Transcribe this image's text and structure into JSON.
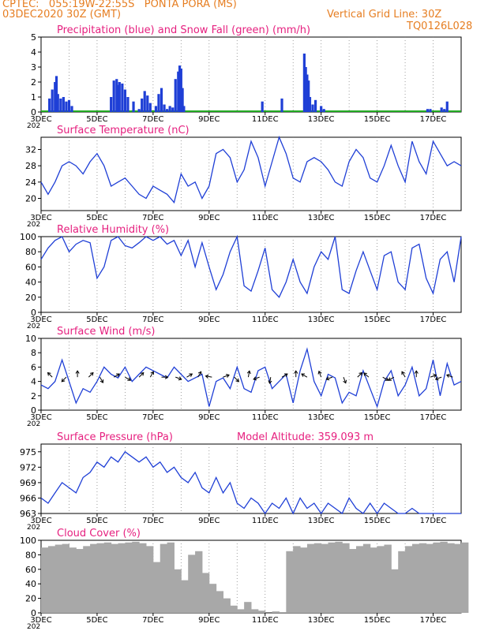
{
  "header": {
    "line1_left": "CPTEC:   055:19W-22:55S   PONTA PORA (MS)",
    "line2_left": "03DEC2020 30Z (GMT)",
    "line2_right": "Vertical Grid Line: 30Z",
    "line3_right": "TQ0126L028"
  },
  "x_axis": {
    "range_days": [
      3,
      18
    ],
    "tick_labels": [
      "3DEC",
      "5DEC",
      "7DEC",
      "9DEC",
      "11DEC",
      "13DEC",
      "15DEC",
      "17DEC"
    ],
    "tick_days": [
      3,
      5,
      7,
      9,
      11,
      13,
      15,
      17
    ],
    "stray_label": "202"
  },
  "colors": {
    "header": "#e67e22",
    "title": "#e6207f",
    "line": "#1f3fd6",
    "snow": "#22aa22",
    "cloud": "#a8a8a8",
    "grid": "#888888"
  },
  "chart_data": [
    {
      "type": "bar",
      "title": "Precipitation (blue) and Snow Fall (green) (mm/h)",
      "ylim": [
        0,
        5
      ],
      "yticks": [
        "0",
        "1",
        "2",
        "3",
        "4",
        "5"
      ],
      "series": [
        {
          "name": "Precipitation",
          "x_days": [
            3.3,
            3.4,
            3.5,
            3.55,
            3.6,
            3.7,
            3.8,
            3.9,
            4.0,
            4.1,
            5.5,
            5.6,
            5.7,
            5.75,
            5.8,
            5.9,
            6.0,
            6.1,
            6.3,
            6.5,
            6.6,
            6.7,
            6.8,
            6.9,
            7.1,
            7.2,
            7.3,
            7.4,
            7.5,
            7.6,
            7.7,
            7.8,
            7.9,
            7.95,
            8.0,
            8.05,
            8.1,
            10.9,
            11.6,
            12.4,
            12.45,
            12.5,
            12.55,
            12.6,
            12.7,
            12.8,
            13.0,
            13.1,
            16.8,
            16.9,
            17.3,
            17.4,
            17.5
          ],
          "values": [
            0.9,
            1.5,
            2.0,
            2.4,
            1.2,
            0.9,
            1.0,
            0.7,
            0.8,
            0.4,
            1.0,
            2.1,
            2.2,
            1.8,
            2.0,
            1.9,
            1.5,
            1.0,
            0.7,
            0.2,
            0.9,
            1.4,
            1.1,
            0.6,
            0.4,
            1.2,
            1.6,
            0.5,
            0.2,
            0.4,
            0.3,
            2.2,
            2.7,
            3.1,
            2.9,
            1.6,
            0.4,
            0.7,
            0.9,
            3.9,
            3.0,
            2.5,
            2.1,
            1.0,
            0.5,
            0.8,
            0.4,
            0.2,
            0.2,
            0.2,
            0.3,
            0.2,
            0.7
          ]
        },
        {
          "name": "Snow Fall",
          "x_days": [
            3,
            18
          ],
          "values": [
            0,
            0
          ]
        }
      ]
    },
    {
      "type": "line",
      "title": "Surface Temperature (nC)",
      "ylim": [
        17,
        35
      ],
      "yticks": [
        "20",
        "24",
        "28",
        "32"
      ],
      "ytick_values": [
        20,
        24,
        28,
        32
      ],
      "x": [
        3.0,
        3.25,
        3.5,
        3.75,
        4.0,
        4.25,
        4.5,
        4.75,
        5.0,
        5.25,
        5.5,
        5.75,
        6.0,
        6.25,
        6.5,
        6.75,
        7.0,
        7.25,
        7.5,
        7.75,
        8.0,
        8.25,
        8.5,
        8.75,
        9.0,
        9.25,
        9.5,
        9.75,
        10.0,
        10.25,
        10.5,
        10.75,
        11.0,
        11.25,
        11.5,
        11.75,
        12.0,
        12.25,
        12.5,
        12.75,
        13.0,
        13.25,
        13.5,
        13.75,
        14.0,
        14.25,
        14.5,
        14.75,
        15.0,
        15.25,
        15.5,
        15.75,
        16.0,
        16.25,
        16.5,
        16.75,
        17.0,
        17.25,
        17.5,
        17.75,
        18.0
      ],
      "values": [
        24,
        21,
        24,
        28,
        29,
        28,
        26,
        29,
        31,
        28,
        23,
        24,
        25,
        23,
        21,
        20,
        23,
        22,
        21,
        19,
        26,
        23,
        24,
        20,
        23,
        31,
        32,
        30,
        24,
        27,
        34,
        30,
        23,
        29,
        35,
        31,
        25,
        24,
        29,
        30,
        29,
        27,
        24,
        23,
        29,
        32,
        30,
        25,
        24,
        28,
        33,
        28,
        24,
        34,
        29,
        26,
        34,
        31,
        28,
        29,
        28
      ]
    },
    {
      "type": "line",
      "title": "Relative Humidity (%)",
      "ylim": [
        0,
        100
      ],
      "yticks": [
        "0",
        "20",
        "40",
        "60",
        "80",
        "100"
      ],
      "ytick_values": [
        0,
        20,
        40,
        60,
        80,
        100
      ],
      "x": [
        3.0,
        3.25,
        3.5,
        3.75,
        4.0,
        4.25,
        4.5,
        4.75,
        5.0,
        5.25,
        5.5,
        5.75,
        6.0,
        6.25,
        6.5,
        6.75,
        7.0,
        7.25,
        7.5,
        7.75,
        8.0,
        8.25,
        8.5,
        8.75,
        9.0,
        9.25,
        9.5,
        9.75,
        10.0,
        10.25,
        10.5,
        10.75,
        11.0,
        11.25,
        11.5,
        11.75,
        12.0,
        12.25,
        12.5,
        12.75,
        13.0,
        13.25,
        13.5,
        13.75,
        14.0,
        14.25,
        14.5,
        14.75,
        15.0,
        15.25,
        15.5,
        15.75,
        16.0,
        16.25,
        16.5,
        16.75,
        17.0,
        17.25,
        17.5,
        17.75,
        18.0
      ],
      "values": [
        70,
        85,
        95,
        100,
        80,
        90,
        95,
        92,
        45,
        60,
        95,
        100,
        88,
        85,
        92,
        100,
        95,
        100,
        90,
        95,
        75,
        95,
        60,
        92,
        60,
        30,
        50,
        80,
        100,
        35,
        28,
        55,
        85,
        30,
        20,
        40,
        70,
        40,
        25,
        60,
        80,
        70,
        100,
        30,
        25,
        55,
        80,
        55,
        30,
        75,
        80,
        40,
        30,
        85,
        90,
        45,
        25,
        70,
        80,
        40,
        100
      ]
    },
    {
      "type": "line",
      "title": "Surface Wind (m/s)",
      "ylim": [
        0,
        10
      ],
      "yticks": [
        "0",
        "2",
        "4",
        "6",
        "8",
        "10"
      ],
      "ytick_values": [
        0,
        2,
        4,
        6,
        8,
        10
      ],
      "x": [
        3.0,
        3.25,
        3.5,
        3.75,
        4.0,
        4.25,
        4.5,
        4.75,
        5.0,
        5.25,
        5.5,
        5.75,
        6.0,
        6.25,
        6.5,
        6.75,
        7.0,
        7.25,
        7.5,
        7.75,
        8.0,
        8.25,
        8.5,
        8.75,
        9.0,
        9.25,
        9.5,
        9.75,
        10.0,
        10.25,
        10.5,
        10.75,
        11.0,
        11.25,
        11.5,
        11.75,
        12.0,
        12.25,
        12.5,
        12.75,
        13.0,
        13.25,
        13.5,
        13.75,
        14.0,
        14.25,
        14.5,
        14.75,
        15.0,
        15.25,
        15.5,
        15.75,
        16.0,
        16.25,
        16.5,
        16.75,
        17.0,
        17.25,
        17.5,
        17.75,
        18.0
      ],
      "values": [
        3.5,
        3.0,
        4.0,
        7.0,
        4.0,
        1.0,
        3.0,
        2.5,
        4.0,
        6.0,
        5.0,
        4.5,
        6.0,
        4.0,
        5.0,
        6.0,
        5.5,
        5.0,
        4.5,
        6.0,
        5.0,
        4.0,
        4.5,
        5.0,
        0.5,
        4.0,
        4.5,
        3.0,
        6.0,
        3.0,
        2.5,
        5.5,
        6.0,
        3.0,
        4.0,
        5.0,
        1.0,
        5.5,
        8.5,
        4.0,
        2.0,
        5.0,
        4.5,
        1.0,
        2.5,
        2.0,
        5.5,
        3.0,
        0.5,
        4.0,
        5.5,
        2.0,
        3.5,
        6.0,
        2.0,
        3.0,
        7.0,
        2.0,
        6.5,
        3.5,
        4.0
      ],
      "arrows_x": [
        3.4,
        3.9,
        4.3,
        4.7,
        5.1,
        5.6,
        6.0,
        6.5,
        6.9,
        7.3,
        7.8,
        8.2,
        8.6,
        9.1,
        9.5,
        9.9,
        10.4,
        10.8,
        11.2,
        11.6,
        12.1,
        12.5,
        13.0,
        13.4,
        13.8,
        14.3,
        14.7,
        15.2,
        15.6,
        16.0,
        16.4,
        16.9,
        17.3,
        17.7
      ],
      "arrows_dir_deg": [
        135,
        225,
        90,
        45,
        300,
        30,
        330,
        45,
        60,
        0,
        340,
        30,
        60,
        170,
        20,
        315,
        80,
        200,
        260,
        30,
        90,
        150,
        110,
        200,
        290,
        45,
        140,
        330,
        210,
        120,
        90,
        20,
        200,
        160
      ]
    },
    {
      "type": "line",
      "title": "Surface Pressure (hPa)",
      "annotation": "Model Altitude: 359.093 m",
      "ylim": [
        963,
        976.5
      ],
      "yticks": [
        "963",
        "966",
        "969",
        "972",
        "975"
      ],
      "ytick_values": [
        963,
        966,
        969,
        972,
        975
      ],
      "x": [
        3.0,
        3.25,
        3.5,
        3.75,
        4.0,
        4.25,
        4.5,
        4.75,
        5.0,
        5.25,
        5.5,
        5.75,
        6.0,
        6.25,
        6.5,
        6.75,
        7.0,
        7.25,
        7.5,
        7.75,
        8.0,
        8.25,
        8.5,
        8.75,
        9.0,
        9.25,
        9.5,
        9.75,
        10.0,
        10.25,
        10.5,
        10.75,
        11.0,
        11.25,
        11.5,
        11.75,
        12.0,
        12.25,
        12.5,
        12.75,
        13.0,
        13.25,
        13.5,
        13.75,
        14.0,
        14.25,
        14.5,
        14.75,
        15.0,
        15.25,
        15.5,
        15.75,
        16.0,
        16.25,
        16.5,
        16.75,
        17.0,
        17.25,
        17.5,
        17.75,
        18.0
      ],
      "values": [
        966,
        965,
        967,
        969,
        968,
        967,
        970,
        971,
        973,
        972,
        974,
        973,
        975,
        974,
        973,
        974,
        972,
        973,
        971,
        972,
        970,
        969,
        971,
        968,
        967,
        970,
        967,
        969,
        965,
        964,
        966,
        965,
        963,
        965,
        964,
        966,
        963,
        966,
        964,
        965,
        962,
        965,
        964,
        963,
        966,
        964,
        963,
        965,
        962,
        965,
        964,
        963,
        962,
        964,
        963,
        962,
        963,
        962,
        963,
        962,
        963
      ]
    },
    {
      "type": "area",
      "title": "Cloud Cover (%)",
      "ylim": [
        0,
        100
      ],
      "yticks": [
        "0",
        "20",
        "40",
        "60",
        "80",
        "100"
      ],
      "ytick_values": [
        0,
        20,
        40,
        60,
        80,
        100
      ],
      "x": [
        3.0,
        3.25,
        3.5,
        3.75,
        4.0,
        4.25,
        4.5,
        4.75,
        5.0,
        5.25,
        5.5,
        5.75,
        6.0,
        6.25,
        6.5,
        6.75,
        7.0,
        7.25,
        7.5,
        7.75,
        8.0,
        8.25,
        8.5,
        8.75,
        9.0,
        9.25,
        9.5,
        9.75,
        10.0,
        10.25,
        10.5,
        10.75,
        11.0,
        11.25,
        11.5,
        11.75,
        12.0,
        12.25,
        12.5,
        12.75,
        13.0,
        13.25,
        13.5,
        13.75,
        14.0,
        14.25,
        14.5,
        14.75,
        15.0,
        15.25,
        15.5,
        15.75,
        16.0,
        16.25,
        16.5,
        16.75,
        17.0,
        17.25,
        17.5,
        17.75,
        18.0
      ],
      "values": [
        90,
        92,
        94,
        95,
        90,
        88,
        92,
        95,
        96,
        97,
        95,
        96,
        97,
        98,
        96,
        92,
        70,
        95,
        97,
        60,
        45,
        80,
        85,
        55,
        40,
        30,
        20,
        10,
        5,
        15,
        5,
        3,
        0,
        2,
        1,
        85,
        92,
        90,
        95,
        96,
        95,
        97,
        98,
        96,
        88,
        92,
        95,
        90,
        92,
        94,
        60,
        85,
        92,
        95,
        96,
        95,
        97,
        98,
        96,
        95,
        97
      ]
    }
  ]
}
